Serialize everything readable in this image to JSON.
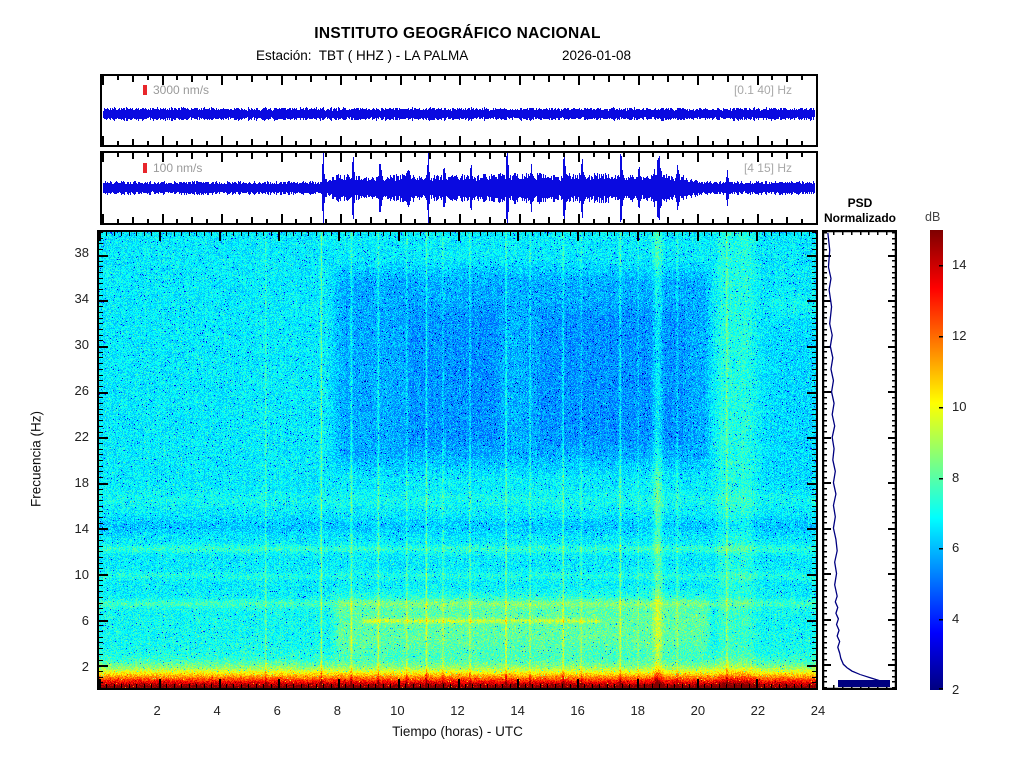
{
  "header": {
    "title": "INSTITUTO GEOGRÁFICO NACIONAL",
    "station_label": "Estación:  TBT ( HHZ ) - LA PALMA",
    "date": "2026-01-08"
  },
  "trace_panels": [
    {
      "scale_label": "3000 nm/s",
      "filter_label": "[0.1 40] Hz"
    },
    {
      "scale_label": "100 nm/s",
      "filter_label": "[4 15] Hz"
    }
  ],
  "spectrogram": {
    "xlabel": "Tiempo (horas) - UTC",
    "ylabel": "Frecuencia  (Hz)",
    "xticks": [
      2,
      4,
      6,
      8,
      10,
      12,
      14,
      16,
      18,
      20,
      22,
      24
    ],
    "yticks": [
      2,
      6,
      10,
      14,
      18,
      22,
      26,
      30,
      34,
      38
    ]
  },
  "psd": {
    "title_line1": "PSD",
    "title_line2": "Normalizado"
  },
  "colorbar": {
    "label": "dB",
    "ticks": [
      2,
      4,
      6,
      8,
      10,
      12,
      14
    ]
  },
  "colors": {
    "trace_blue": "#0a0ae0",
    "psd_navy": "#000080",
    "scale_bar_red": "#e8262b",
    "axis_black": "#000000"
  },
  "chart_data": [
    {
      "name": "broadband-seismogram",
      "type": "line",
      "scale_label": "3000 nm/s",
      "bandpass_hz": [
        0.1,
        40
      ],
      "x_range_hours": [
        0,
        24
      ],
      "description": "continuous uniform background microseism noise, constant small amplitude all day"
    },
    {
      "name": "filtered-seismogram",
      "type": "line",
      "scale_label": "100 nm/s",
      "bandpass_hz": [
        4,
        15
      ],
      "x_range_hours": [
        0,
        24
      ],
      "daytime_window_hours": [
        7.5,
        19.7
      ],
      "burst_center_hour": 18.65,
      "events_hours": [
        5.6,
        7.45,
        8.45,
        9.35,
        10.3,
        10.95,
        11.5,
        12.4,
        13.6,
        14.4,
        15.5,
        16.1,
        17.4,
        18.0,
        18.65,
        19.3,
        20.95
      ],
      "event_heights": [
        0.0,
        1.0,
        0.95,
        0.6,
        0.35,
        0.9,
        0.4,
        0.5,
        0.95,
        0.4,
        1.0,
        0.45,
        0.9,
        0.35,
        0.8,
        0.3,
        0.5
      ]
    },
    {
      "name": "spectrogram",
      "type": "heatmap",
      "xlabel": "Tiempo (horas) - UTC",
      "ylabel": "Frecuencia (Hz)",
      "xlim": [
        0,
        24
      ],
      "ylim": [
        0,
        40
      ],
      "xticks": [
        2,
        4,
        6,
        8,
        10,
        12,
        14,
        16,
        18,
        20,
        22,
        24
      ],
      "yticks": [
        2,
        6,
        10,
        14,
        18,
        22,
        26,
        30,
        34,
        38
      ],
      "colormap": "jet",
      "clim_db": [
        2,
        15
      ],
      "background_db": 6.7,
      "low_freq_surge": {
        "extra_db_at_0hz": 8.8,
        "decay_hz": 1.6
      },
      "horizontal_bands": [
        {
          "freq_hz": 7.55,
          "amp_db": 0.75
        },
        {
          "freq_hz": 9.95,
          "amp_db": 0.5
        },
        {
          "freq_hz": 12.3,
          "amp_db": 0.75
        },
        {
          "freq_hz": 14.3,
          "amp_db": -0.5
        },
        {
          "freq_hz": 16.6,
          "amp_db": 0.3
        }
      ],
      "day_band": {
        "hours": [
          7.8,
          20.4
        ],
        "freq_hz": [
          3,
          8.5
        ],
        "amp_db": 1.05
      },
      "tremor_line": {
        "freq_hz": 6.05,
        "hours": [
          8.8,
          16.6
        ],
        "amp_db": 1.9
      },
      "quiet_block": {
        "hours": [
          7.8,
          20.4
        ],
        "freq_hz": [
          19,
          37
        ],
        "amp_db": -0.85
      },
      "light_column": {
        "hours": [
          20.55,
          21.95
        ],
        "amp_db": 0.55
      },
      "events_hours": [
        5.6,
        7.45,
        8.45,
        9.35,
        10.3,
        10.95,
        11.5,
        12.4,
        13.6,
        14.4,
        15.5,
        16.1,
        17.4,
        18.0,
        18.65,
        19.3,
        20.95
      ],
      "events_amp_db": [
        1.2,
        1.8,
        1.6,
        1.4,
        1.0,
        1.6,
        1.0,
        1.2,
        1.7,
        1.0,
        1.7,
        1.0,
        1.5,
        0.9,
        1.5,
        0.9,
        1.3
      ]
    },
    {
      "name": "psd-normalizado",
      "type": "line",
      "title": "PSD Normalizado",
      "points_freq_value": [
        [
          40,
          0.03
        ],
        [
          38.5,
          0.06
        ],
        [
          37,
          0.04
        ],
        [
          36,
          0.08
        ],
        [
          35,
          0.05
        ],
        [
          33.5,
          0.09
        ],
        [
          32,
          0.06
        ],
        [
          31,
          0.1
        ],
        [
          30,
          0.07
        ],
        [
          29,
          0.11
        ],
        [
          28,
          0.08
        ],
        [
          27,
          0.12
        ],
        [
          26,
          0.09
        ],
        [
          25,
          0.13
        ],
        [
          24,
          0.1
        ],
        [
          23,
          0.14
        ],
        [
          22,
          0.1
        ],
        [
          21,
          0.13
        ],
        [
          20,
          0.11
        ],
        [
          19,
          0.15
        ],
        [
          18,
          0.12
        ],
        [
          17,
          0.16
        ],
        [
          16,
          0.12
        ],
        [
          15,
          0.15
        ],
        [
          14,
          0.12
        ],
        [
          13,
          0.16
        ],
        [
          12,
          0.18
        ],
        [
          11,
          0.14
        ],
        [
          10,
          0.17
        ],
        [
          9,
          0.14
        ],
        [
          8,
          0.18
        ],
        [
          7.5,
          0.15
        ],
        [
          7,
          0.19
        ],
        [
          6.5,
          0.16
        ],
        [
          6,
          0.2
        ],
        [
          5.5,
          0.17
        ],
        [
          5,
          0.21
        ],
        [
          4.5,
          0.18
        ],
        [
          4,
          0.22
        ],
        [
          3.5,
          0.19
        ],
        [
          3,
          0.22
        ],
        [
          2.5,
          0.24
        ],
        [
          2,
          0.28
        ],
        [
          1.7,
          0.34
        ],
        [
          1.4,
          0.42
        ],
        [
          1.1,
          0.55
        ],
        [
          0.8,
          0.72
        ],
        [
          0.5,
          0.9
        ],
        [
          0.3,
          0.98
        ],
        [
          0.15,
          1.0
        ]
      ]
    },
    {
      "name": "colorbar",
      "type": "colorbar",
      "label": "dB",
      "range": [
        2,
        15
      ],
      "ticks": [
        2,
        4,
        6,
        8,
        10,
        12,
        14
      ],
      "colormap": "jet"
    }
  ]
}
